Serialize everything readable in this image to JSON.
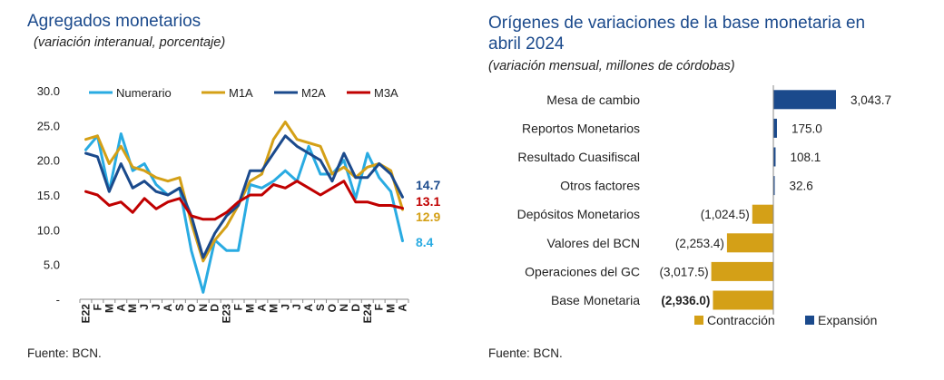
{
  "left": {
    "title": "Agregados monetarios",
    "subtitle": "(variación interanual, porcentaje)",
    "source": "Fuente: BCN.",
    "chart_data": {
      "type": "line",
      "title": "Agregados monetarios",
      "subtitle": "(variación interanual, porcentaje)",
      "ylim": [
        0,
        30
      ],
      "y_ticks": [
        "30.0",
        "25.0",
        "20.0",
        "15.0",
        "10.0",
        "5.0",
        "-"
      ],
      "y_tick_values": [
        30,
        25,
        20,
        15,
        10,
        5,
        0
      ],
      "x_ticks": [
        "E22",
        "F",
        "M",
        "A",
        "M",
        "J",
        "J",
        "A",
        "S",
        "O",
        "N",
        "D",
        "E23",
        "F",
        "M",
        "A",
        "M",
        "J",
        "J",
        "A",
        "S",
        "O",
        "N",
        "D",
        "E24",
        "F",
        "M",
        "A"
      ],
      "legend_position": "top",
      "series": [
        {
          "name": "Numerario",
          "color": "#29abe2",
          "end_label": "8.4",
          "values": [
            21.5,
            23.5,
            15.5,
            23.8,
            18.5,
            19.5,
            16.5,
            15.0,
            16.0,
            7.0,
            1.0,
            8.5,
            7.0,
            7.0,
            16.5,
            16.0,
            17.0,
            18.5,
            17.0,
            22.0,
            18.0,
            18.0,
            20.0,
            14.5,
            21.0,
            17.5,
            15.5,
            8.4
          ]
        },
        {
          "name": "M1A",
          "color": "#d4a017",
          "end_label": "12.9",
          "values": [
            23.0,
            23.5,
            19.5,
            22.0,
            19.0,
            18.5,
            17.5,
            17.0,
            17.5,
            11.0,
            5.5,
            8.5,
            10.5,
            13.5,
            17.0,
            18.0,
            23.0,
            25.5,
            23.0,
            22.5,
            22.0,
            18.0,
            19.0,
            17.5,
            19.0,
            19.5,
            18.5,
            12.9
          ]
        },
        {
          "name": "M2A",
          "color": "#1b4a8c",
          "end_label": "14.7",
          "values": [
            21.0,
            20.5,
            15.5,
            19.5,
            16.0,
            17.0,
            15.5,
            15.0,
            16.0,
            12.0,
            6.0,
            9.5,
            12.0,
            13.5,
            18.5,
            18.5,
            21.0,
            23.5,
            22.0,
            21.0,
            20.0,
            17.0,
            21.0,
            17.5,
            17.5,
            19.5,
            18.0,
            14.7
          ]
        },
        {
          "name": "M3A",
          "color": "#c00000",
          "end_label": "13.1",
          "values": [
            15.5,
            15.0,
            13.5,
            14.0,
            12.5,
            14.5,
            13.0,
            14.0,
            14.5,
            12.0,
            11.5,
            11.5,
            12.5,
            14.0,
            15.0,
            15.0,
            16.5,
            16.0,
            17.0,
            16.0,
            15.0,
            16.0,
            17.0,
            14.0,
            14.0,
            13.5,
            13.5,
            13.1
          ]
        }
      ]
    }
  },
  "right": {
    "title_line1": "Orígenes de variaciones de la base monetaria en",
    "title_line2": "abril 2024",
    "subtitle": "(variación mensual, millones de córdobas)",
    "source": "Fuente: BCN.",
    "chart_data": {
      "type": "bar",
      "orientation": "horizontal",
      "title": "Orígenes de variaciones de la base monetaria en abril 2024",
      "subtitle": "(variación mensual, millones de córdobas)",
      "categories": [
        "Mesa de cambio",
        "Reportos Monetarios",
        "Resultado Cuasifiscal",
        "Otros factores",
        "Depósitos Monetarios",
        "Valores del BCN",
        "Operaciones del GC",
        "Base Monetaria"
      ],
      "values": [
        3043.7,
        175.0,
        108.1,
        32.6,
        -1024.5,
        -2253.4,
        -3017.5,
        -2936.0
      ],
      "value_labels": [
        "3,043.7",
        "175.0",
        "108.1",
        "32.6",
        "(1,024.5)",
        "(2,253.4)",
        "(3,017.5)",
        "(2,936.0)"
      ],
      "bold_label_index": 7,
      "legend_position": "bottom",
      "legend": [
        {
          "name": "Contracción",
          "color": "#d4a017"
        },
        {
          "name": "Expansión",
          "color": "#1b4a8c"
        }
      ]
    }
  }
}
